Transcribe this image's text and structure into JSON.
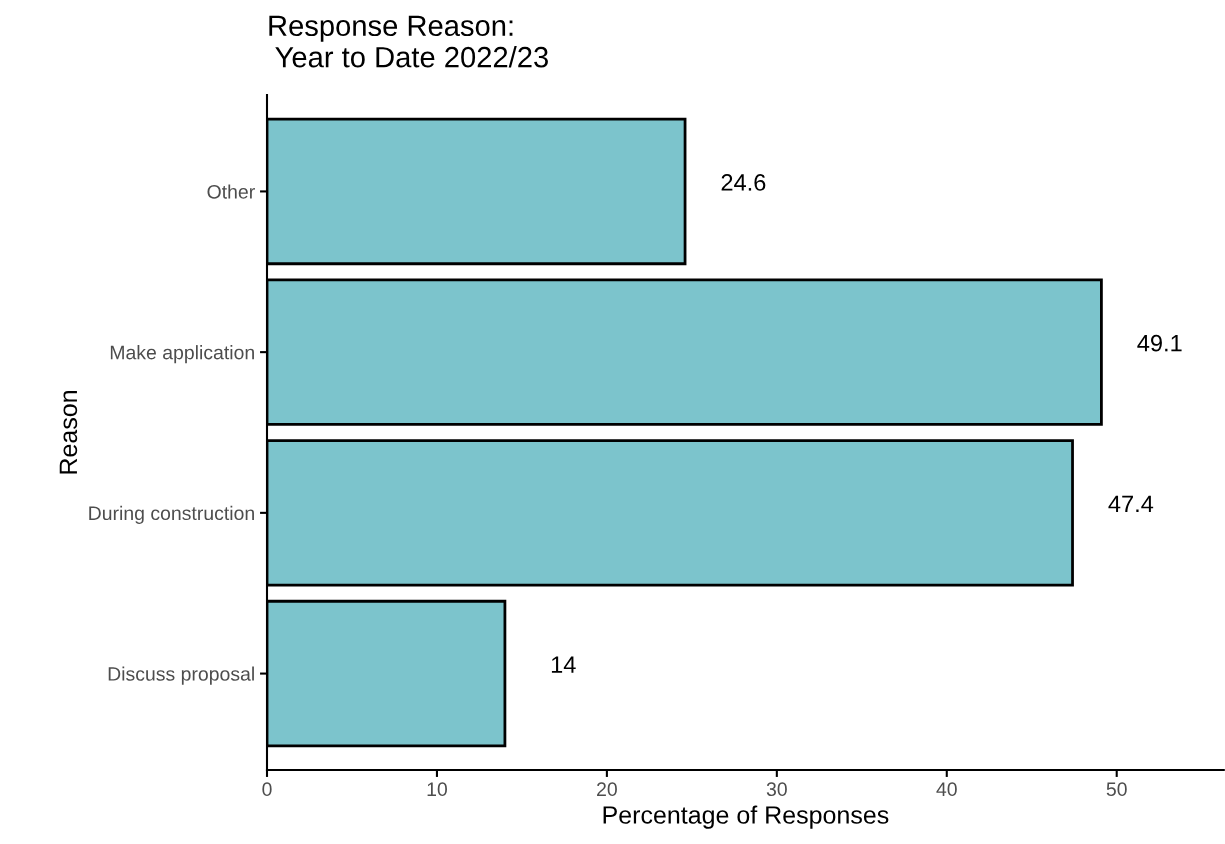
{
  "chart_data": {
    "type": "bar",
    "orientation": "horizontal",
    "title": "Response Reason:\n Year to Date 2022/23",
    "xlabel": "Percentage of Responses",
    "ylabel": "Reason",
    "categories": [
      "Other",
      "Make application",
      "During construction",
      "Discuss proposal"
    ],
    "values": [
      24.6,
      49.1,
      47.4,
      14
    ],
    "color": "#7cc4cc",
    "xlim": [
      0,
      56.3
    ],
    "xticks": [
      0,
      10,
      20,
      30,
      40,
      50
    ],
    "data_labels": true
  }
}
